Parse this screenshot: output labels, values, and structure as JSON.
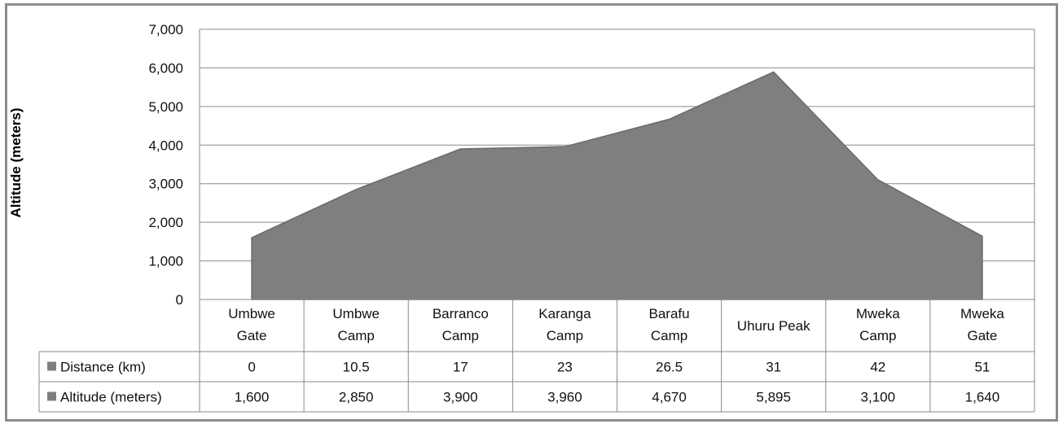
{
  "chart_data": {
    "type": "area",
    "ylabel": "Altitude (meters)",
    "xlabel": "",
    "ylim": [
      0,
      7000
    ],
    "yticks": [
      "0",
      "1,000",
      "2,000",
      "3,000",
      "4,000",
      "5,000",
      "6,000",
      "7,000"
    ],
    "ytick_values": [
      0,
      1000,
      2000,
      3000,
      4000,
      5000,
      6000,
      7000
    ],
    "categories": [
      [
        "Umbwe",
        "Gate"
      ],
      [
        "Umbwe",
        "Camp"
      ],
      [
        "Barranco",
        "Camp"
      ],
      [
        "Karanga",
        "Camp"
      ],
      [
        "Barafu",
        "Camp"
      ],
      [
        "Uhuru Peak"
      ],
      [
        "Mweka",
        "Camp"
      ],
      [
        "Mweka",
        "Gate"
      ]
    ],
    "grid": true,
    "legend": "table",
    "series": [
      {
        "name": "Distance (km)",
        "values": [
          0,
          10.5,
          17,
          23,
          26.5,
          31,
          42,
          51
        ],
        "labels": [
          "0",
          "10.5",
          "17",
          "23",
          "26.5",
          "31",
          "42",
          "51"
        ],
        "plotted": false
      },
      {
        "name": "Altitude (meters)",
        "values": [
          1600,
          2850,
          3900,
          3960,
          4670,
          5895,
          3100,
          1640
        ],
        "labels": [
          "1,600",
          "2,850",
          "3,900",
          "3,960",
          "4,670",
          "5,895",
          "3,100",
          "1,640"
        ],
        "plotted": true
      }
    ],
    "colors": {
      "area": "#7f7f7f",
      "area_edge": "#6a6a6a",
      "grid": "#8a8a8a",
      "frame": "#8c8c8c"
    }
  }
}
